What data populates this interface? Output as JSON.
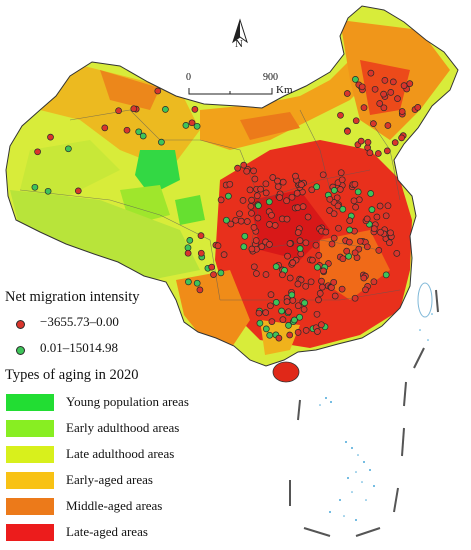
{
  "north_arrow": {
    "label": "N"
  },
  "scale_bar": {
    "start": "0",
    "end": "900",
    "unit": "Km"
  },
  "legend_migration": {
    "title": "Net migration intensity",
    "items": [
      {
        "label": "−3655.73–0.00",
        "color": "#d9352c"
      },
      {
        "label": "0.01–15014.98",
        "color": "#3ec45a"
      }
    ]
  },
  "legend_aging": {
    "title": "Types of aging in 2020",
    "items": [
      {
        "label": "Young population areas",
        "color": "#22dd33"
      },
      {
        "label": "Early adulthood areas",
        "color": "#88ee22"
      },
      {
        "label": "Late adulthood areas",
        "color": "#d8f01c"
      },
      {
        "label": "Early-aged areas",
        "color": "#f8c214"
      },
      {
        "label": "Middle-aged areas",
        "color": "#ec7a1a"
      },
      {
        "label": "Late-aged areas",
        "color": "#ec1c1c"
      }
    ]
  }
}
